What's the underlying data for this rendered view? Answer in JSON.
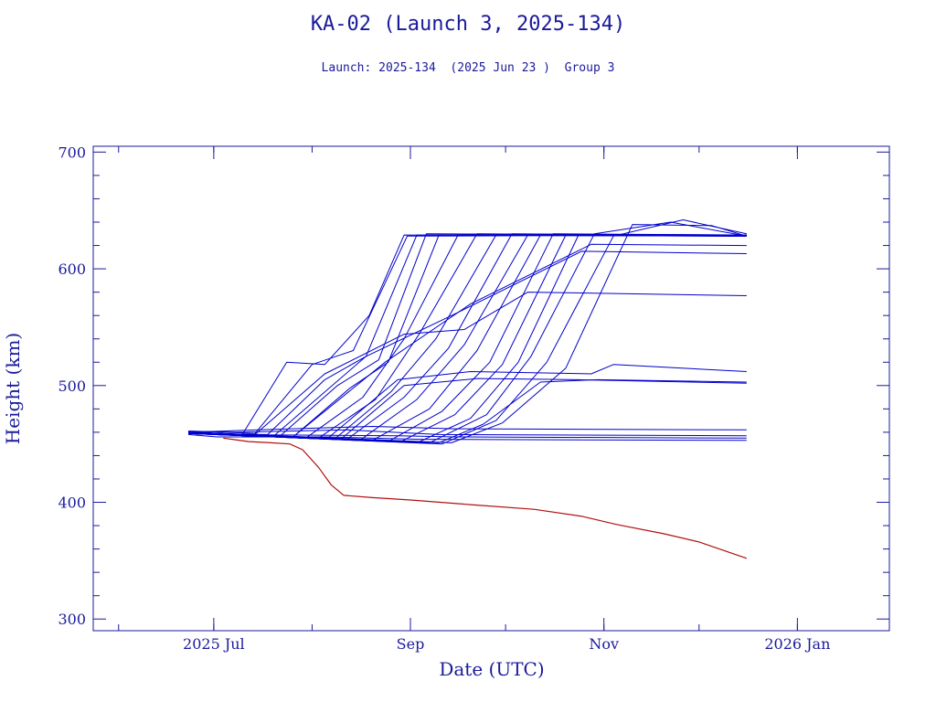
{
  "chart_data": {
    "type": "line",
    "title": "KA-02 (Launch 3, 2025-134)",
    "subtitle": "Launch: 2025-134  (2025 Jun 23 )  Group 3",
    "xlabel": "Date (UTC)",
    "ylabel": "Height (km)",
    "xlim": [
      "2025-05-24",
      "2026-01-30"
    ],
    "ylim": [
      290,
      705
    ],
    "x_ticks": [
      {
        "date": "2025-07-01",
        "label": "2025 Jul"
      },
      {
        "date": "2025-09-01",
        "label": "Sep"
      },
      {
        "date": "2025-11-01",
        "label": "Nov"
      },
      {
        "date": "2026-01-01",
        "label": "2026 Jan"
      }
    ],
    "y_ticks": [
      300,
      400,
      500,
      600,
      700
    ],
    "colors": {
      "axes": "#1a1a9c",
      "series": "#0000cc",
      "decay": "#b01010"
    },
    "series": [
      {
        "points": [
          [
            "2025-06-23",
            460
          ],
          [
            "2025-07-10",
            458
          ],
          [
            "2025-07-24",
            520
          ],
          [
            "2025-08-05",
            518
          ],
          [
            "2025-08-19",
            560
          ],
          [
            "2025-08-30",
            629
          ],
          [
            "2025-12-16",
            628
          ]
        ]
      },
      {
        "points": [
          [
            "2025-06-23",
            461
          ],
          [
            "2025-07-14",
            459
          ],
          [
            "2025-08-01",
            518
          ],
          [
            "2025-08-14",
            530
          ],
          [
            "2025-08-31",
            628
          ],
          [
            "2025-12-16",
            629
          ]
        ]
      },
      {
        "points": [
          [
            "2025-06-23",
            459
          ],
          [
            "2025-07-18",
            458
          ],
          [
            "2025-08-05",
            505
          ],
          [
            "2025-08-18",
            525
          ],
          [
            "2025-09-03",
            629
          ],
          [
            "2025-12-16",
            628
          ]
        ]
      },
      {
        "points": [
          [
            "2025-06-23",
            460
          ],
          [
            "2025-07-22",
            457
          ],
          [
            "2025-08-09",
            500
          ],
          [
            "2025-08-22",
            522
          ],
          [
            "2025-09-06",
            630
          ],
          [
            "2025-12-16",
            629
          ]
        ]
      },
      {
        "points": [
          [
            "2025-06-23",
            459
          ],
          [
            "2025-07-26",
            456
          ],
          [
            "2025-08-13",
            498
          ],
          [
            "2025-08-25",
            520
          ],
          [
            "2025-09-10",
            629
          ],
          [
            "2025-12-16",
            628
          ]
        ]
      },
      {
        "points": [
          [
            "2025-06-23",
            460
          ],
          [
            "2025-07-30",
            455
          ],
          [
            "2025-08-17",
            490
          ],
          [
            "2025-08-30",
            540
          ],
          [
            "2025-09-16",
            629
          ],
          [
            "2025-12-16",
            629
          ]
        ]
      },
      {
        "points": [
          [
            "2025-06-23",
            460
          ],
          [
            "2025-08-03",
            455
          ],
          [
            "2025-08-21",
            488
          ],
          [
            "2025-09-04",
            545
          ],
          [
            "2025-09-22",
            630
          ],
          [
            "2025-12-16",
            628
          ]
        ]
      },
      {
        "points": [
          [
            "2025-06-23",
            459
          ],
          [
            "2025-08-08",
            454
          ],
          [
            "2025-08-26",
            495
          ],
          [
            "2025-09-09",
            540
          ],
          [
            "2025-09-28",
            629
          ],
          [
            "2025-12-16",
            629
          ]
        ]
      },
      {
        "points": [
          [
            "2025-06-23",
            460
          ],
          [
            "2025-08-12",
            454
          ],
          [
            "2025-08-30",
            490
          ],
          [
            "2025-09-13",
            532
          ],
          [
            "2025-10-03",
            630
          ],
          [
            "2025-12-16",
            628
          ]
        ]
      },
      {
        "points": [
          [
            "2025-06-23",
            459
          ],
          [
            "2025-08-16",
            453
          ],
          [
            "2025-09-03",
            488
          ],
          [
            "2025-09-18",
            535
          ],
          [
            "2025-10-08",
            629
          ],
          [
            "2025-12-16",
            629
          ]
        ]
      },
      {
        "points": [
          [
            "2025-06-23",
            460
          ],
          [
            "2025-08-20",
            453
          ],
          [
            "2025-09-07",
            480
          ],
          [
            "2025-09-22",
            530
          ],
          [
            "2025-10-12",
            629
          ],
          [
            "2025-12-16",
            628
          ]
        ]
      },
      {
        "points": [
          [
            "2025-06-23",
            459
          ],
          [
            "2025-08-25",
            452
          ],
          [
            "2025-09-11",
            478
          ],
          [
            "2025-09-26",
            520
          ],
          [
            "2025-10-16",
            630
          ],
          [
            "2025-12-16",
            629
          ]
        ]
      },
      {
        "points": [
          [
            "2025-06-23",
            460
          ],
          [
            "2025-08-29",
            452
          ],
          [
            "2025-09-15",
            475
          ],
          [
            "2025-09-30",
            518
          ],
          [
            "2025-10-20",
            629
          ],
          [
            "2025-12-16",
            628
          ]
        ]
      },
      {
        "points": [
          [
            "2025-06-23",
            459
          ],
          [
            "2025-09-03",
            451
          ],
          [
            "2025-09-20",
            472
          ],
          [
            "2025-10-05",
            520
          ],
          [
            "2025-10-24",
            629
          ],
          [
            "2025-12-16",
            629
          ]
        ]
      },
      {
        "points": [
          [
            "2025-06-23",
            460
          ],
          [
            "2025-09-07",
            451
          ],
          [
            "2025-09-25",
            475
          ],
          [
            "2025-10-09",
            525
          ],
          [
            "2025-10-29",
            630
          ],
          [
            "2025-11-22",
            640
          ],
          [
            "2025-12-16",
            628
          ]
        ]
      },
      {
        "points": [
          [
            "2025-06-23",
            459
          ],
          [
            "2025-09-11",
            450
          ],
          [
            "2025-09-28",
            470
          ],
          [
            "2025-10-14",
            520
          ],
          [
            "2025-11-04",
            628
          ],
          [
            "2025-11-26",
            642
          ],
          [
            "2025-12-16",
            630
          ]
        ]
      },
      {
        "points": [
          [
            "2025-06-23",
            460
          ],
          [
            "2025-09-14",
            451
          ],
          [
            "2025-09-30",
            468
          ],
          [
            "2025-10-20",
            515
          ],
          [
            "2025-11-10",
            638
          ],
          [
            "2025-12-05",
            637
          ],
          [
            "2025-12-16",
            628
          ]
        ]
      },
      {
        "points": [
          [
            "2025-06-23",
            459
          ],
          [
            "2025-07-14",
            458
          ],
          [
            "2025-08-05",
            510
          ],
          [
            "2025-08-30",
            544
          ],
          [
            "2025-09-18",
            548
          ],
          [
            "2025-10-08",
            580
          ],
          [
            "2025-12-16",
            577
          ]
        ]
      },
      {
        "points": [
          [
            "2025-06-23",
            460
          ],
          [
            "2025-07-20",
            457
          ],
          [
            "2025-08-18",
            525
          ],
          [
            "2025-09-14",
            560
          ],
          [
            "2025-10-25",
            615
          ],
          [
            "2025-12-16",
            613
          ]
        ]
      },
      {
        "points": [
          [
            "2025-06-23",
            459
          ],
          [
            "2025-07-26",
            456
          ],
          [
            "2025-08-24",
            520
          ],
          [
            "2025-09-20",
            570
          ],
          [
            "2025-10-28",
            621
          ],
          [
            "2025-12-16",
            620
          ]
        ]
      },
      {
        "points": [
          [
            "2025-06-23",
            460
          ],
          [
            "2025-08-06",
            455
          ],
          [
            "2025-08-28",
            505
          ],
          [
            "2025-09-20",
            512
          ],
          [
            "2025-10-28",
            510
          ],
          [
            "2025-11-04",
            518
          ],
          [
            "2025-12-16",
            512
          ]
        ]
      },
      {
        "points": [
          [
            "2025-06-23",
            459
          ],
          [
            "2025-08-10",
            454
          ],
          [
            "2025-08-30",
            500
          ],
          [
            "2025-09-22",
            506
          ],
          [
            "2025-10-24",
            505
          ],
          [
            "2025-12-16",
            502
          ]
        ]
      },
      {
        "points": [
          [
            "2025-06-23",
            460
          ],
          [
            "2025-09-10",
            451
          ],
          [
            "2025-09-24",
            467
          ],
          [
            "2025-10-12",
            503
          ],
          [
            "2025-10-30",
            505
          ],
          [
            "2025-12-16",
            503
          ]
        ]
      },
      {
        "points": [
          [
            "2025-06-23",
            459
          ],
          [
            "2025-07-05",
            458
          ],
          [
            "2025-08-28",
            457
          ],
          [
            "2025-09-15",
            456
          ],
          [
            "2025-12-16",
            455
          ]
        ]
      },
      {
        "points": [
          [
            "2025-06-23",
            458
          ],
          [
            "2025-07-02",
            456
          ],
          [
            "2025-08-05",
            456
          ],
          [
            "2025-09-04",
            454
          ],
          [
            "2025-12-16",
            453
          ]
        ]
      },
      {
        "points": [
          [
            "2025-06-23",
            461
          ],
          [
            "2025-07-08",
            460
          ],
          [
            "2025-08-12",
            462
          ],
          [
            "2025-09-10",
            458
          ],
          [
            "2025-12-16",
            457
          ]
        ]
      },
      {
        "points": [
          [
            "2025-06-23",
            460
          ],
          [
            "2025-07-15",
            462
          ],
          [
            "2025-08-20",
            465
          ],
          [
            "2025-09-15",
            463
          ],
          [
            "2025-12-16",
            462
          ]
        ]
      }
    ],
    "decay": [
      [
        "2025-07-04",
        455
      ],
      [
        "2025-07-12",
        452
      ],
      [
        "2025-07-19",
        451
      ],
      [
        "2025-07-25",
        450
      ],
      [
        "2025-07-29",
        445
      ],
      [
        "2025-08-03",
        430
      ],
      [
        "2025-08-07",
        415
      ],
      [
        "2025-08-11",
        406
      ],
      [
        "2025-08-20",
        404
      ],
      [
        "2025-09-01",
        402
      ],
      [
        "2025-09-20",
        398
      ],
      [
        "2025-10-10",
        394
      ],
      [
        "2025-10-25",
        388
      ],
      [
        "2025-11-05",
        381
      ],
      [
        "2025-11-20",
        373
      ],
      [
        "2025-12-01",
        366
      ],
      [
        "2025-12-16",
        352
      ]
    ]
  }
}
